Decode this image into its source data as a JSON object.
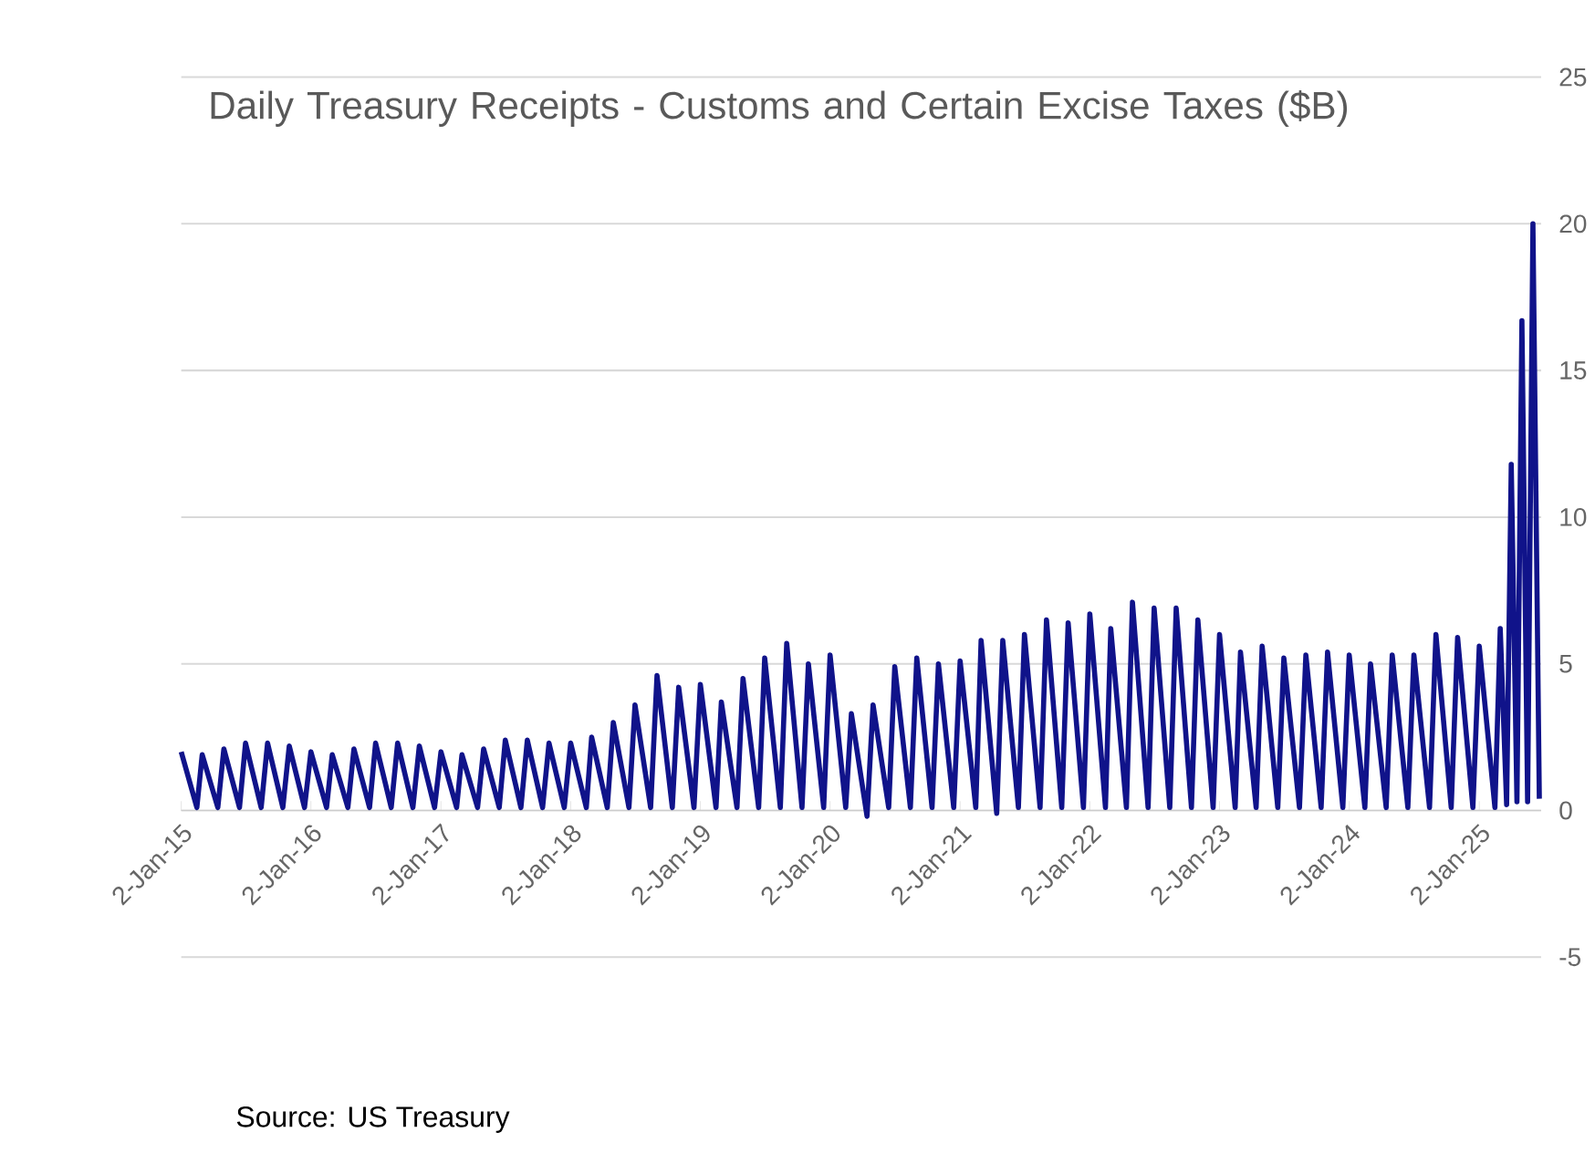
{
  "chart_data": {
    "type": "line",
    "title": "Daily Treasury Receipts - Customs and Certain Excise Taxes ($B)",
    "annotations": [
      "Source: US Treasury"
    ],
    "series": [
      {
        "color": "#10138a",
        "x": [
          "2015-01-02",
          "2015-02-15",
          "2015-03-02",
          "2015-04-15",
          "2015-05-02",
          "2015-06-15",
          "2015-07-02",
          "2015-08-15",
          "2015-09-02",
          "2015-10-15",
          "2015-11-02",
          "2015-12-15",
          "2016-01-02",
          "2016-02-15",
          "2016-03-02",
          "2016-04-15",
          "2016-05-02",
          "2016-06-15",
          "2016-07-02",
          "2016-08-15",
          "2016-09-02",
          "2016-10-15",
          "2016-11-02",
          "2016-12-15",
          "2017-01-02",
          "2017-02-15",
          "2017-03-02",
          "2017-04-15",
          "2017-05-02",
          "2017-06-15",
          "2017-07-02",
          "2017-08-15",
          "2017-09-02",
          "2017-10-15",
          "2017-11-02",
          "2017-12-15",
          "2018-01-02",
          "2018-02-15",
          "2018-03-02",
          "2018-04-15",
          "2018-05-02",
          "2018-06-15",
          "2018-07-02",
          "2018-08-15",
          "2018-09-02",
          "2018-10-15",
          "2018-11-02",
          "2018-12-15",
          "2019-01-02",
          "2019-02-15",
          "2019-03-02",
          "2019-04-15",
          "2019-05-02",
          "2019-06-15",
          "2019-07-02",
          "2019-08-15",
          "2019-09-02",
          "2019-10-15",
          "2019-11-02",
          "2019-12-15",
          "2020-01-02",
          "2020-02-15",
          "2020-03-02",
          "2020-04-15",
          "2020-05-02",
          "2020-06-15",
          "2020-07-02",
          "2020-08-15",
          "2020-09-02",
          "2020-10-15",
          "2020-11-02",
          "2020-12-15",
          "2021-01-02",
          "2021-02-15",
          "2021-03-02",
          "2021-04-15",
          "2021-05-02",
          "2021-06-15",
          "2021-07-02",
          "2021-08-15",
          "2021-09-02",
          "2021-10-15",
          "2021-11-02",
          "2021-12-15",
          "2022-01-02",
          "2022-02-15",
          "2022-03-02",
          "2022-04-15",
          "2022-05-02",
          "2022-06-15",
          "2022-07-02",
          "2022-08-15",
          "2022-09-02",
          "2022-10-15",
          "2022-11-02",
          "2022-12-15",
          "2023-01-02",
          "2023-02-15",
          "2023-03-02",
          "2023-04-15",
          "2023-05-02",
          "2023-06-15",
          "2023-07-02",
          "2023-08-15",
          "2023-09-02",
          "2023-10-15",
          "2023-11-02",
          "2023-12-15",
          "2024-01-02",
          "2024-02-15",
          "2024-03-02",
          "2024-04-15",
          "2024-05-02",
          "2024-06-15",
          "2024-07-02",
          "2024-08-15",
          "2024-09-02",
          "2024-10-15",
          "2024-11-02",
          "2024-12-15",
          "2025-01-02",
          "2025-02-15",
          "2025-03-02",
          "2025-03-20",
          "2025-04-02",
          "2025-04-18",
          "2025-05-02",
          "2025-05-18",
          "2025-06-02",
          "2025-06-20"
        ],
        "values": [
          2.0,
          0.1,
          1.9,
          0.1,
          2.1,
          0.1,
          2.3,
          0.1,
          2.3,
          0.1,
          2.2,
          0.1,
          2.0,
          0.1,
          1.9,
          0.1,
          2.1,
          0.1,
          2.3,
          0.1,
          2.3,
          0.1,
          2.2,
          0.1,
          2.0,
          0.1,
          1.9,
          0.1,
          2.1,
          0.1,
          2.4,
          0.1,
          2.4,
          0.1,
          2.3,
          0.1,
          2.3,
          0.1,
          2.5,
          0.1,
          3.0,
          0.1,
          3.6,
          0.1,
          4.6,
          0.1,
          4.2,
          0.1,
          4.3,
          0.1,
          3.7,
          0.1,
          4.5,
          0.1,
          5.2,
          0.1,
          5.7,
          0.1,
          5.0,
          0.1,
          5.3,
          0.1,
          3.3,
          -0.2,
          3.6,
          0.1,
          4.9,
          0.1,
          5.2,
          0.1,
          5.0,
          0.1,
          5.1,
          0.1,
          5.8,
          -0.1,
          5.8,
          0.1,
          6.0,
          0.1,
          6.5,
          0.1,
          6.4,
          0.1,
          6.7,
          0.1,
          6.2,
          0.1,
          7.1,
          0.1,
          6.9,
          0.1,
          6.9,
          0.1,
          6.5,
          0.1,
          6.0,
          0.1,
          5.4,
          0.1,
          5.6,
          0.1,
          5.2,
          0.1,
          5.3,
          0.1,
          5.4,
          0.1,
          5.3,
          0.1,
          5.0,
          0.1,
          5.3,
          0.1,
          5.3,
          0.1,
          6.0,
          0.1,
          5.9,
          0.1,
          5.6,
          0.1,
          6.2,
          0.2,
          11.8,
          0.3,
          16.7,
          0.3,
          20.0,
          0.4
        ]
      }
    ],
    "xlim": [
      "2015-01-02",
      "2025-06-25"
    ],
    "xticks": [
      {
        "value": "2015-01-02",
        "label": "2-Jan-15"
      },
      {
        "value": "2016-01-02",
        "label": "2-Jan-16"
      },
      {
        "value": "2017-01-02",
        "label": "2-Jan-17"
      },
      {
        "value": "2018-01-02",
        "label": "2-Jan-18"
      },
      {
        "value": "2019-01-02",
        "label": "2-Jan-19"
      },
      {
        "value": "2020-01-02",
        "label": "2-Jan-20"
      },
      {
        "value": "2021-01-02",
        "label": "2-Jan-21"
      },
      {
        "value": "2022-01-02",
        "label": "2-Jan-22"
      },
      {
        "value": "2023-01-02",
        "label": "2-Jan-23"
      },
      {
        "value": "2024-01-02",
        "label": "2-Jan-24"
      },
      {
        "value": "2025-01-02",
        "label": "2-Jan-25"
      }
    ],
    "ylim": [
      -5,
      25
    ],
    "yticks": [
      -5,
      0,
      5,
      10,
      15,
      20,
      25
    ],
    "grid": "y"
  }
}
